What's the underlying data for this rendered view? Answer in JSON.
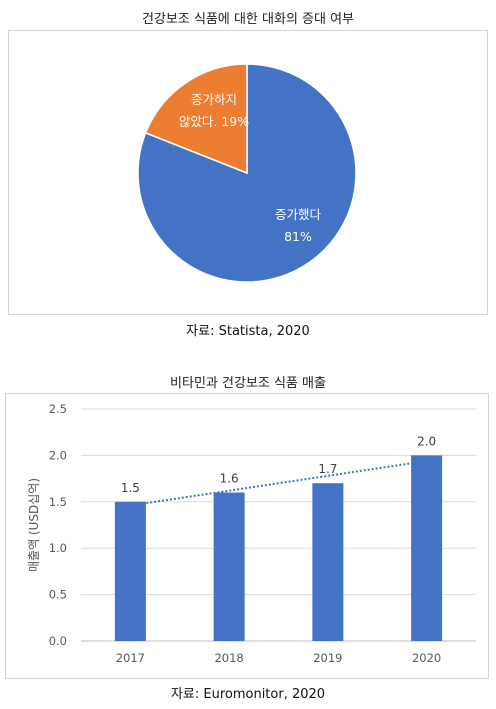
{
  "chart_data": [
    {
      "type": "pie",
      "title": "건강보조 식품에 대한 대화의 증대 여부",
      "slices": [
        {
          "label_lines": [
            "증가했다",
            "81%"
          ],
          "value": 81,
          "color": "#4472C4"
        },
        {
          "label_lines": [
            "증가하지",
            "않았다. 19%"
          ],
          "value": 19,
          "color": "#ED7D31"
        }
      ],
      "source": "자료: Statista, 2020"
    },
    {
      "type": "bar",
      "title": "비타민과 건강보조 식품 매출",
      "categories": [
        "2017",
        "2018",
        "2019",
        "2020"
      ],
      "values": [
        1.5,
        1.6,
        1.7,
        2.0
      ],
      "data_labels": [
        "1.5",
        "1.6",
        "1.7",
        "2.0"
      ],
      "ylabel": "매출액 (USD십억)",
      "ylim": [
        0,
        2.5
      ],
      "yticks": [
        "0.0",
        "0.5",
        "1.0",
        "1.5",
        "2.0",
        "2.5"
      ],
      "ytick_values": [
        0,
        0.5,
        1.0,
        1.5,
        2.0,
        2.5
      ],
      "grid": true,
      "trendline": "linear dotted",
      "color": "#4472C4",
      "source": "자료: Euromonitor, 2020"
    }
  ]
}
